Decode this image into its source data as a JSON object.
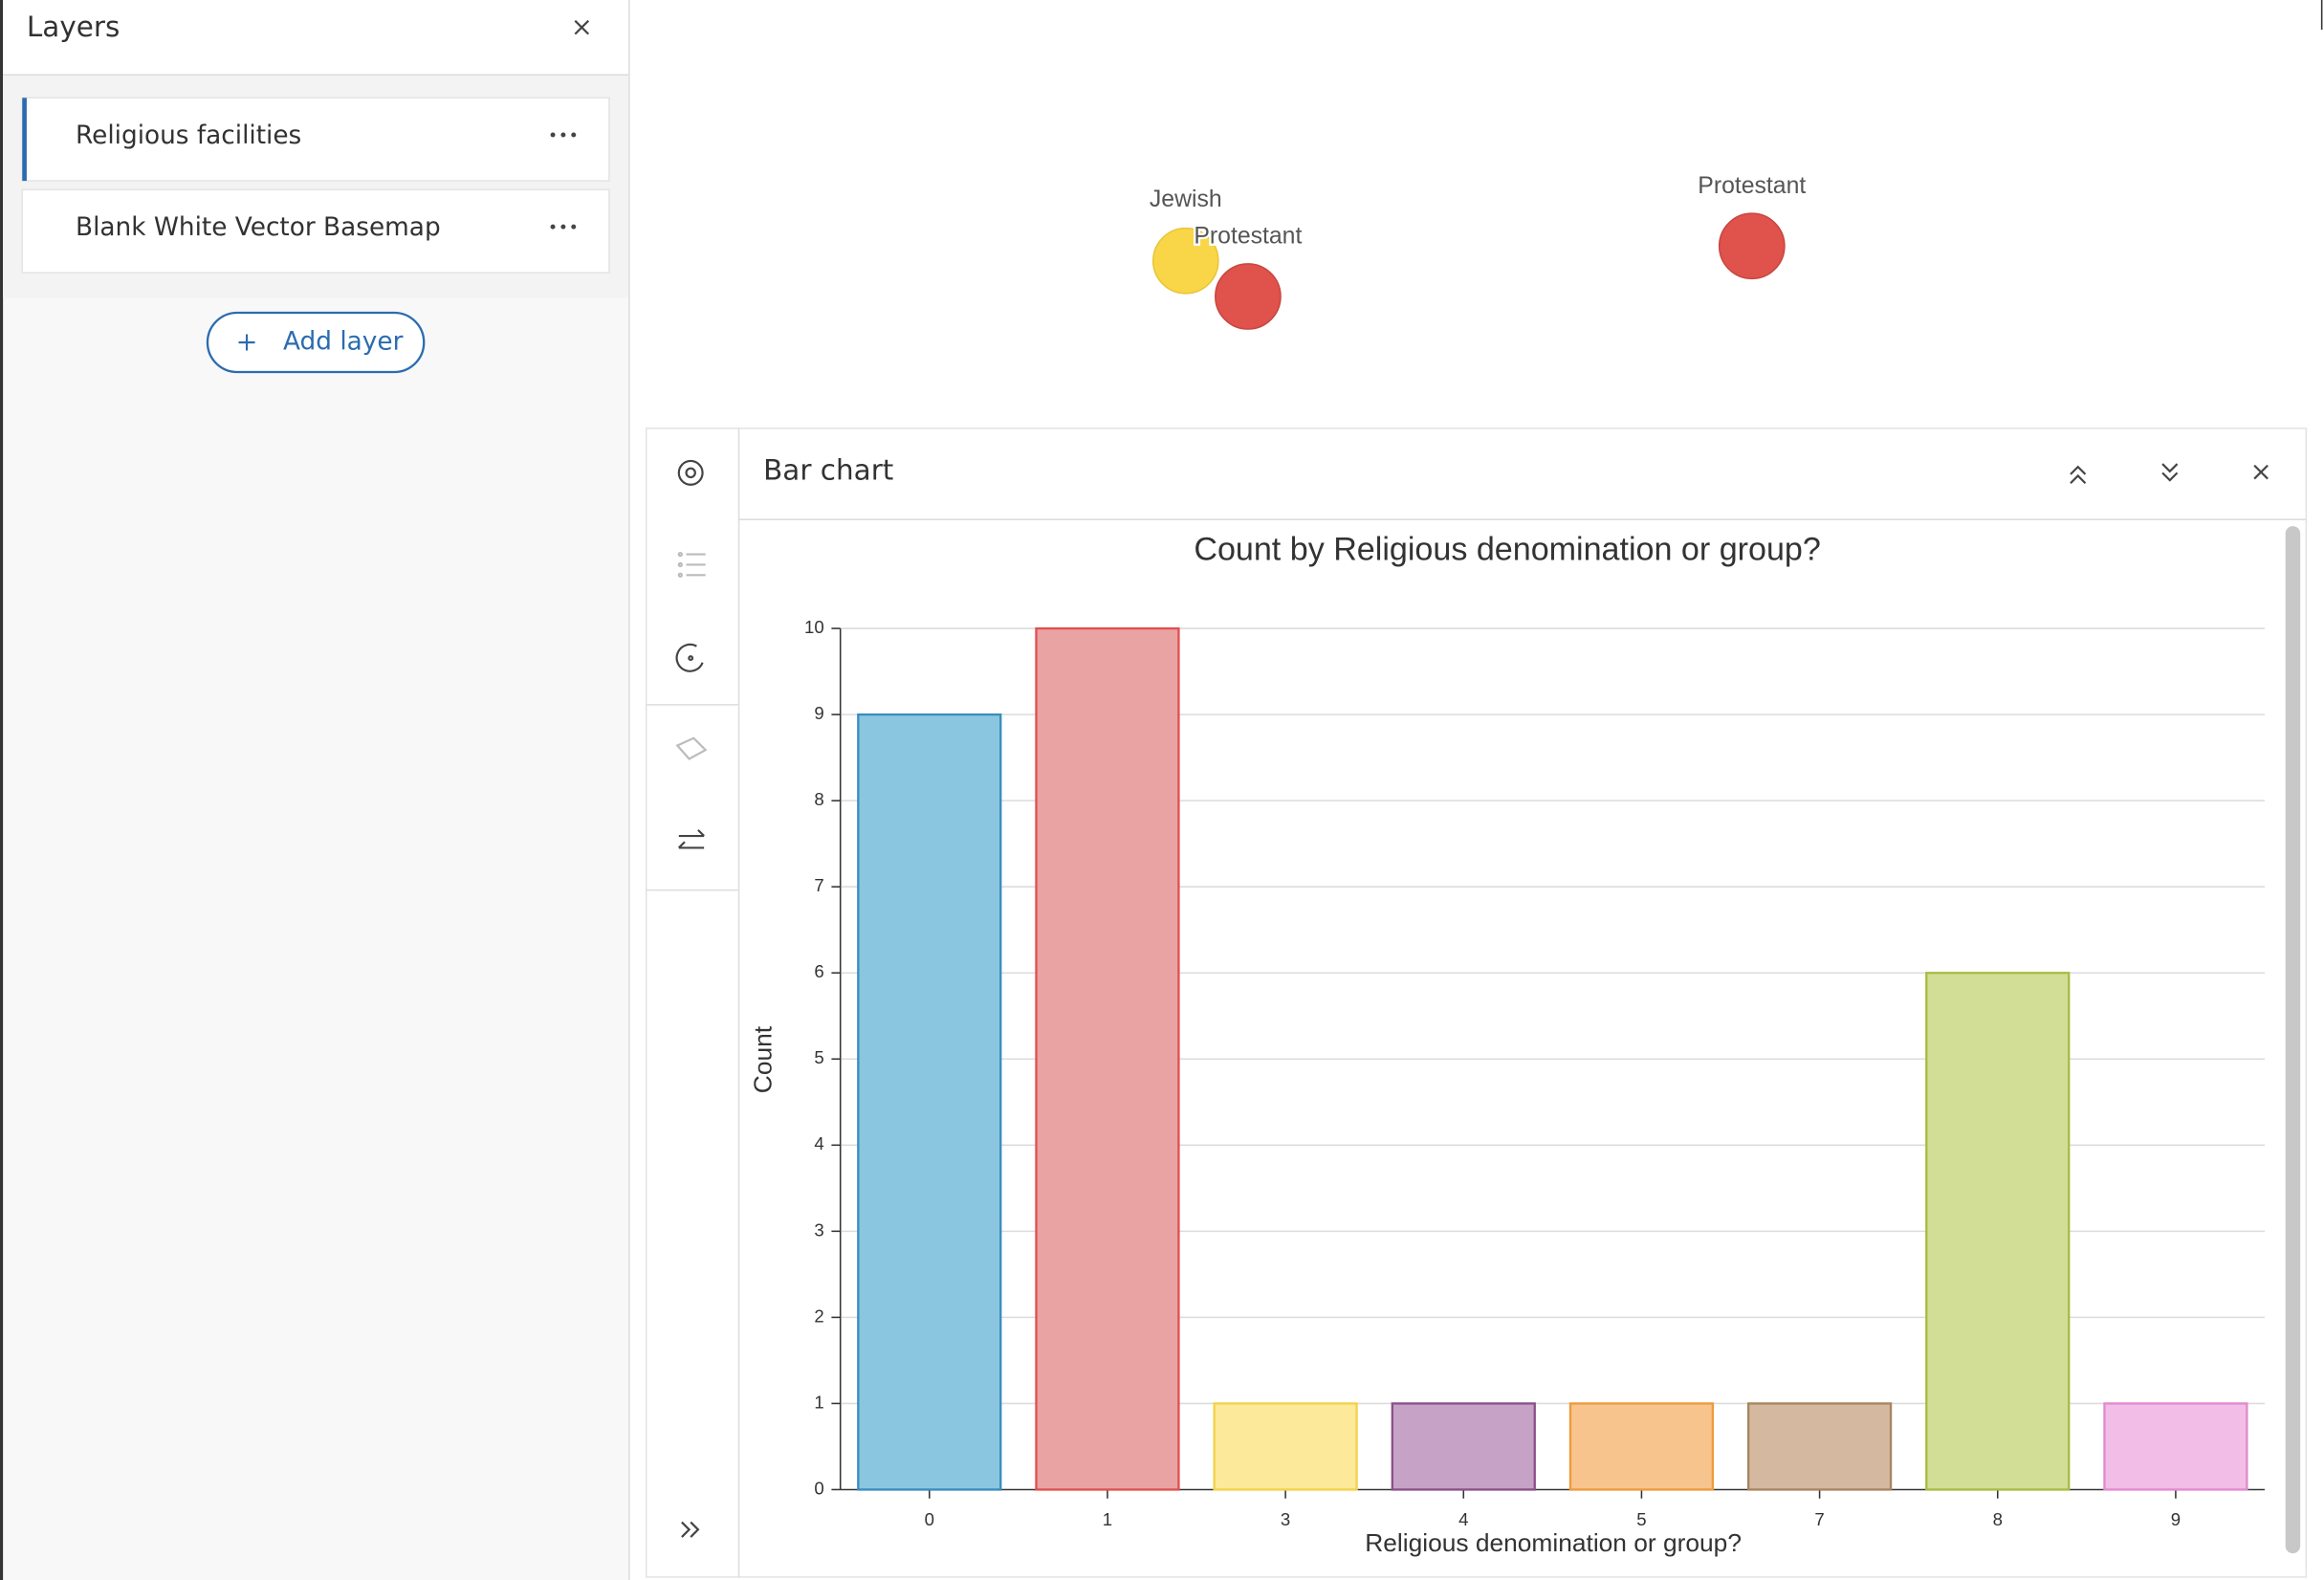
{
  "layers_panel": {
    "title": "Layers",
    "layers": [
      "Religious facilities",
      "Blank White Vector Basemap"
    ],
    "add_button": "Add layer"
  },
  "map": {
    "labels": [
      "Jewish",
      "Protestant",
      "Protestant"
    ]
  },
  "chart_panel": {
    "title": "Bar chart"
  },
  "chart_data": {
    "type": "bar",
    "title": "Count by Religious denomination or group?",
    "x_label": "Religious denomination or group?",
    "y_label": "Count",
    "categories": [
      "0",
      "1",
      "3",
      "4",
      "5",
      "7",
      "8",
      "9"
    ],
    "values": [
      9,
      10,
      1,
      1,
      1,
      1,
      6,
      1
    ],
    "colors": [
      "#8ac6e0",
      "#eaa3a3",
      "#fde99a",
      "#c6a3c6",
      "#f7c48e",
      "#d5b8a0",
      "#d2de96",
      "#f2bde6"
    ],
    "edge_colors": [
      "#3a8cbf",
      "#e05050",
      "#f2d24a",
      "#8a4f8a",
      "#ee9a3c",
      "#a8845f",
      "#a8bc44",
      "#e08ad0"
    ],
    "ylim": [
      0,
      10
    ],
    "yticks": [
      0,
      1,
      2,
      3,
      4,
      5,
      6,
      7,
      8,
      9,
      10
    ],
    "grid": true
  }
}
